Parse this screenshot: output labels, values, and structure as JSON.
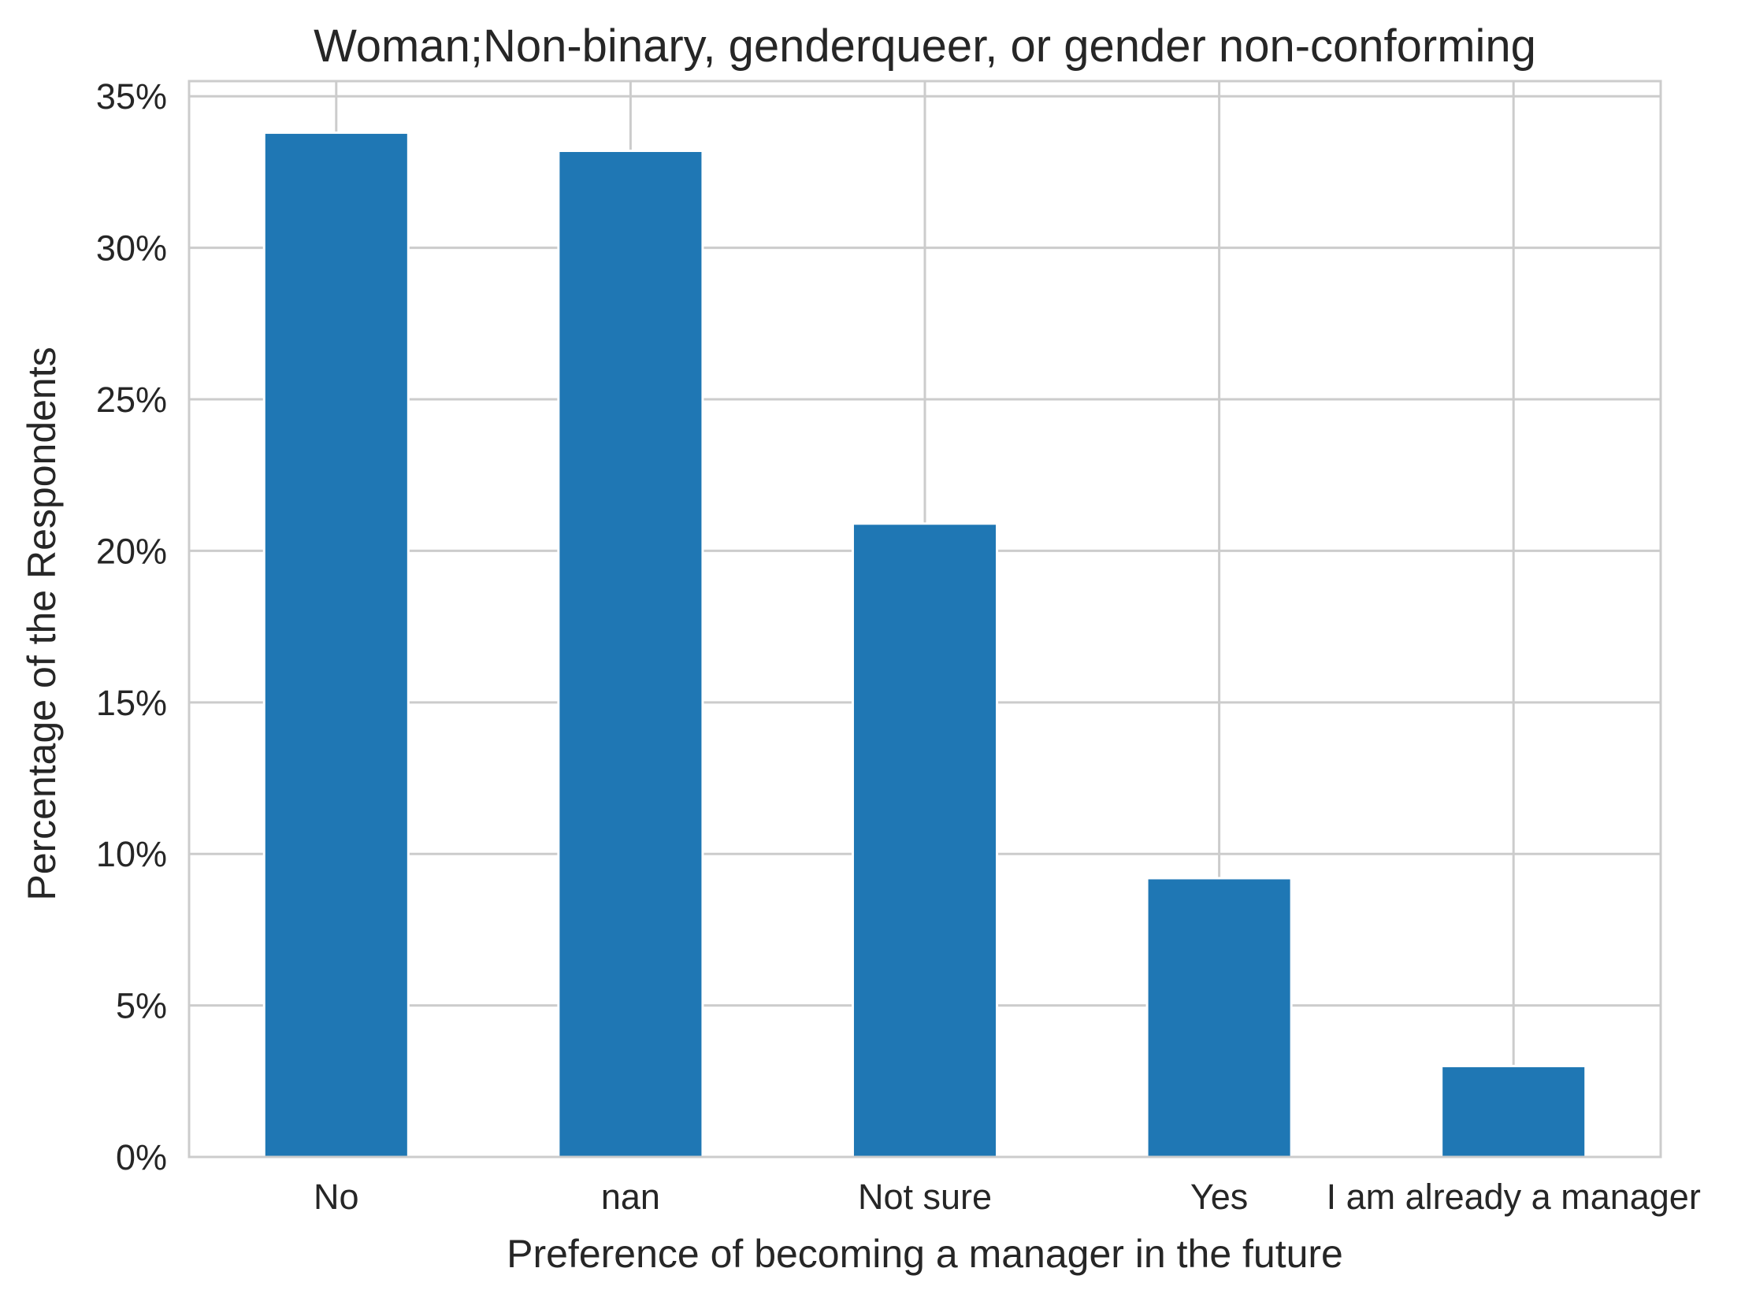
{
  "chart_data": {
    "type": "bar",
    "title": "Woman;Non-binary, genderqueer, or gender non-conforming",
    "xlabel": "Preference of becoming a manager in the future",
    "ylabel": "Percentage of the Respondents",
    "categories": [
      "No",
      "nan",
      "Not sure",
      "Yes",
      "I am already a manager"
    ],
    "values": [
      33.8,
      33.2,
      20.9,
      9.2,
      3.0
    ],
    "ylim": [
      0,
      35.5
    ],
    "yticks": [
      0,
      5,
      10,
      15,
      20,
      25,
      30,
      35
    ],
    "ytick_labels": [
      "0%",
      "5%",
      "10%",
      "15%",
      "20%",
      "25%",
      "30%",
      "35%"
    ],
    "grid": true,
    "bar_color": "#1f77b4",
    "grid_color": "#cccccc"
  }
}
